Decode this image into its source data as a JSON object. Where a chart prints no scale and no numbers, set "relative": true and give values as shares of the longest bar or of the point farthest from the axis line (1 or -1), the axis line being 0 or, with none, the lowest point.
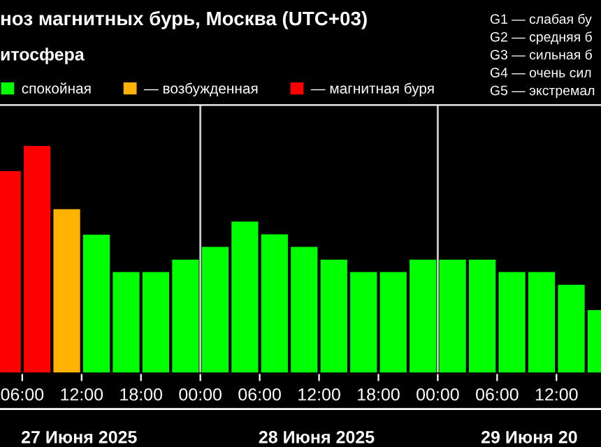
{
  "chart_data": {
    "type": "bar",
    "title": "ноз магнитных бурь, Москва (UTC+03)",
    "subtitle": "итосфера",
    "relative": true,
    "x": [
      "2025-06-27T04:30",
      "2025-06-27T07:30",
      "2025-06-27T10:30",
      "2025-06-27T13:30",
      "2025-06-27T16:30",
      "2025-06-27T19:30",
      "2025-06-27T22:30",
      "2025-06-28T01:30",
      "2025-06-28T04:30",
      "2025-06-28T07:30",
      "2025-06-28T10:30",
      "2025-06-28T13:30",
      "2025-06-28T16:30",
      "2025-06-28T19:30",
      "2025-06-28T22:30",
      "2025-06-29T01:30",
      "2025-06-29T04:30",
      "2025-06-29T07:30",
      "2025-06-29T10:30",
      "2025-06-29T13:30",
      "2025-06-29T16:30"
    ],
    "series": [
      {
        "name": "спокойная",
        "color": "#00ff00",
        "values": [
          null,
          null,
          null,
          0.61,
          0.445,
          0.445,
          0.5,
          0.556,
          0.667,
          0.611,
          0.556,
          0.5,
          0.445,
          0.445,
          0.5,
          0.5,
          0.5,
          0.445,
          0.445,
          0.389,
          0.278
        ]
      },
      {
        "name": "— возбужденная",
        "color": "#ffb300",
        "values": [
          null,
          null,
          0.722,
          null,
          null,
          null,
          null,
          null,
          null,
          null,
          null,
          null,
          null,
          null,
          null,
          null,
          null,
          null,
          null,
          null,
          null
        ]
      },
      {
        "name": "— магнитная буря",
        "color": "#ff0000",
        "values": [
          0.889,
          1,
          null,
          null,
          null,
          null,
          null,
          null,
          null,
          null,
          null,
          null,
          null,
          null,
          null,
          null,
          null,
          null,
          null,
          null,
          null
        ]
      }
    ],
    "xlim": [
      "2025-06-27T03:45",
      "2025-06-29T16:30"
    ],
    "xticks": [
      {
        "value": "2025-06-27T06:00",
        "label": "06:00"
      },
      {
        "value": "2025-06-27T12:00",
        "label": "12:00"
      },
      {
        "value": "2025-06-27T18:00",
        "label": "18:00"
      },
      {
        "value": "2025-06-28T00:00",
        "label": "00:00"
      },
      {
        "value": "2025-06-28T06:00",
        "label": "06:00"
      },
      {
        "value": "2025-06-28T12:00",
        "label": "12:00"
      },
      {
        "value": "2025-06-28T18:00",
        "label": "18:00"
      },
      {
        "value": "2025-06-29T00:00",
        "label": "00:00"
      },
      {
        "value": "2025-06-29T06:00",
        "label": "06:00"
      },
      {
        "value": "2025-06-29T12:00",
        "label": "12:00"
      }
    ],
    "ref_lines": [
      {
        "axis": "x",
        "value": "2025-06-28T00:00",
        "color": "#cccccc"
      },
      {
        "axis": "x",
        "value": "2025-06-29T00:00",
        "color": "#cccccc"
      }
    ],
    "annotations": [
      "27 Июня 2025",
      "28 Июня 2025",
      "29 Июня 20",
      "G1 — слабая бу",
      "G2 — средняя б",
      "G3 — сильная б",
      "G4 — очень сил",
      "G5 — экстремал"
    ],
    "legend": "top left",
    "grid": false
  }
}
